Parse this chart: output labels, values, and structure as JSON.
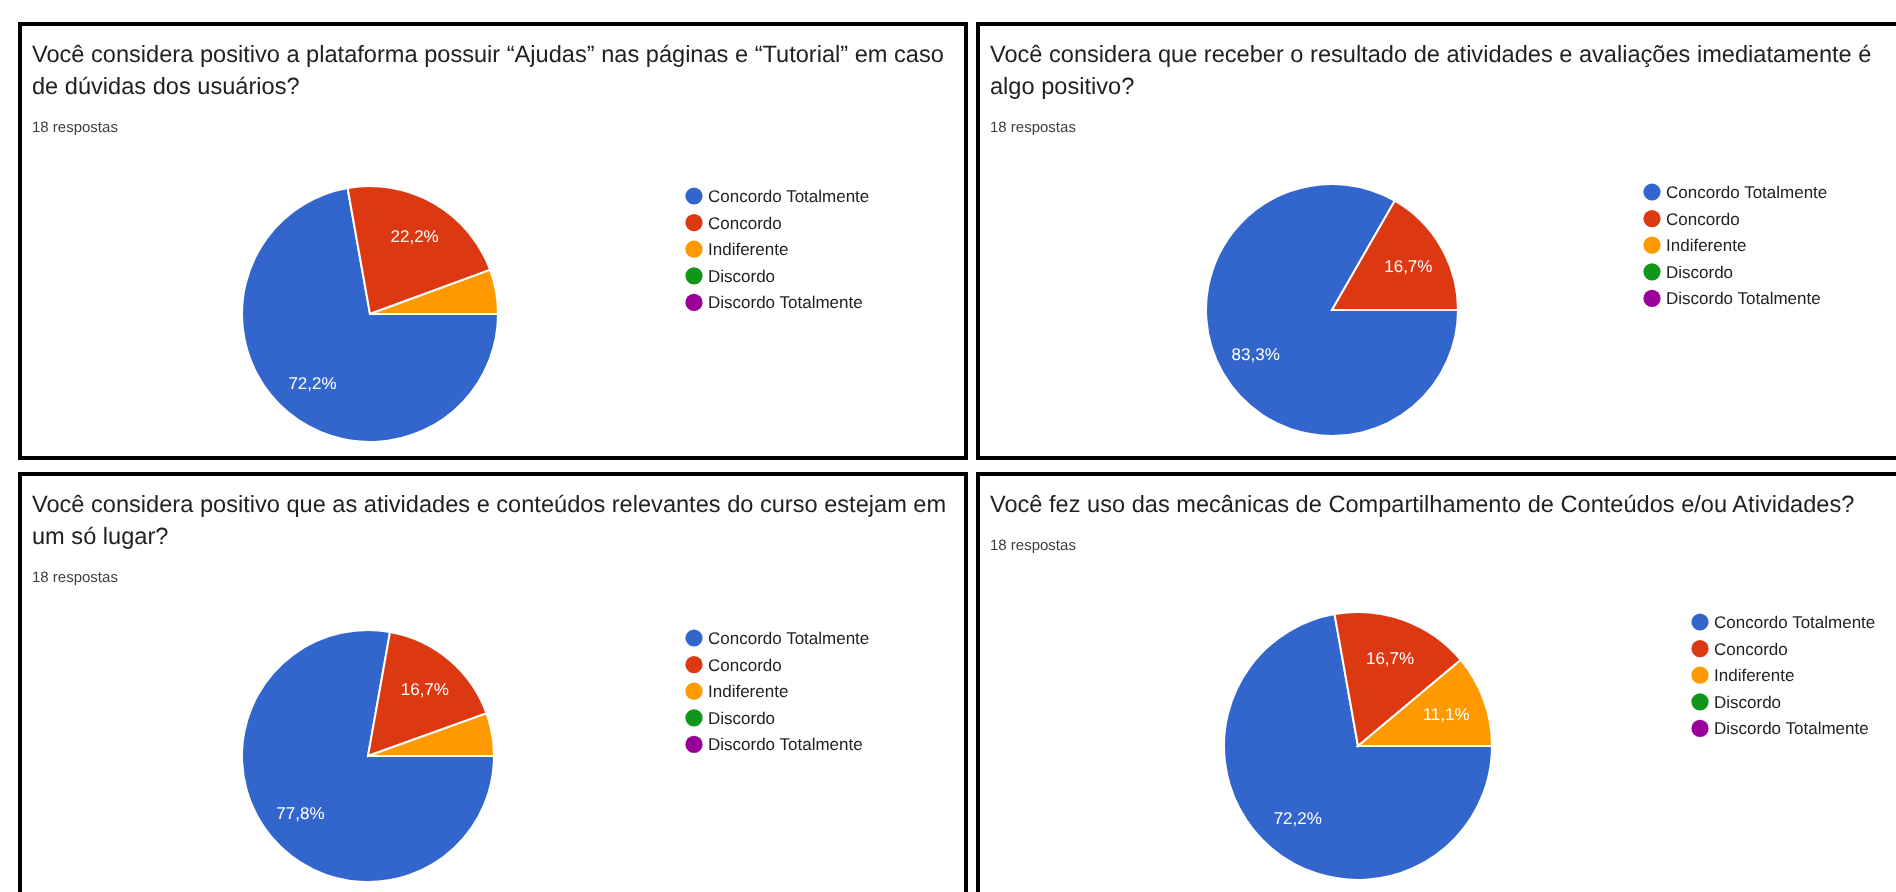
{
  "chart_data": [
    {
      "type": "pie",
      "title": "Você considera positivo a plataforma possuir “Ajudas” nas páginas e “Tutorial” em caso de dúvidas dos usuários?",
      "subtitle": "18 respostas",
      "categories": [
        "Concordo Totalmente",
        "Concordo",
        "Indiferente",
        "Discordo",
        "Discordo Totalmente"
      ],
      "values": [
        72.2,
        22.2,
        5.6,
        0,
        0
      ],
      "colors": [
        "#3366cc",
        "#dc3912",
        "#ff9900",
        "#109618",
        "#990099"
      ],
      "value_labels": [
        "72,2%",
        "22,2%",
        null,
        null,
        null
      ],
      "legend": "right"
    },
    {
      "type": "pie",
      "title": "Você considera que receber o resultado de atividades e avaliações imediatamente é algo positivo?",
      "subtitle": "18 respostas",
      "categories": [
        "Concordo Totalmente",
        "Concordo",
        "Indiferente",
        "Discordo",
        "Discordo Totalmente"
      ],
      "values": [
        83.3,
        16.7,
        0,
        0,
        0
      ],
      "colors": [
        "#3366cc",
        "#dc3912",
        "#ff9900",
        "#109618",
        "#990099"
      ],
      "value_labels": [
        "83,3%",
        "16,7%",
        null,
        null,
        null
      ],
      "legend": "right"
    },
    {
      "type": "pie",
      "title": "Você considera positivo que as atividades e conteúdos relevantes do curso estejam em um só lugar?",
      "subtitle": "18 respostas",
      "categories": [
        "Concordo Totalmente",
        "Concordo",
        "Indiferente",
        "Discordo",
        "Discordo Totalmente"
      ],
      "values": [
        77.8,
        16.7,
        5.5,
        0,
        0
      ],
      "colors": [
        "#3366cc",
        "#dc3912",
        "#ff9900",
        "#109618",
        "#990099"
      ],
      "value_labels": [
        "77,8%",
        "16,7%",
        null,
        null,
        null
      ],
      "legend": "right"
    },
    {
      "type": "pie",
      "title": "Você fez uso das mecânicas de Compartilhamento de Conteúdos e/ou Atividades?",
      "subtitle": "18 respostas",
      "categories": [
        "Concordo Totalmente",
        "Concordo",
        "Indiferente",
        "Discordo",
        "Discordo Totalmente"
      ],
      "values": [
        72.2,
        16.7,
        11.1,
        0,
        0
      ],
      "colors": [
        "#3366cc",
        "#dc3912",
        "#ff9900",
        "#109618",
        "#990099"
      ],
      "value_labels": [
        "72,2%",
        "16,7%",
        "11,1%",
        null,
        null
      ],
      "legend": "right"
    }
  ]
}
